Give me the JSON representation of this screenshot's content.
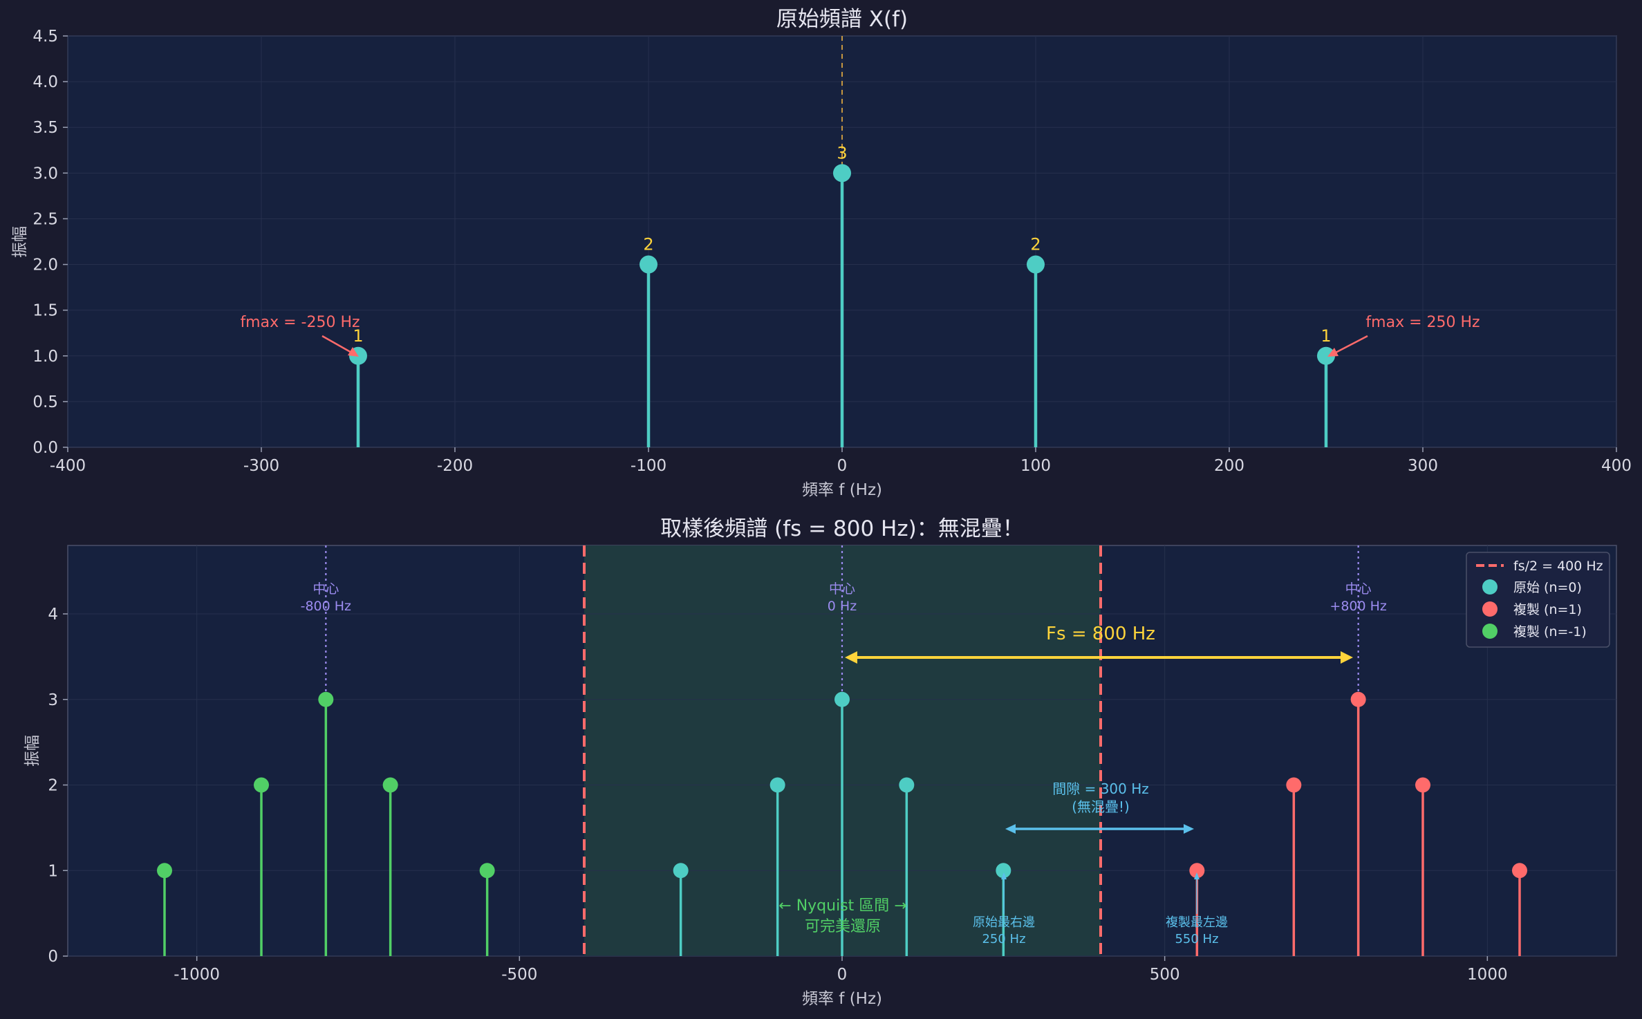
{
  "colors": {
    "background": "#1a1b2e",
    "plot_bg": "#16213e",
    "original": "#4ecdc4",
    "replica_pos": "#ff6b6b",
    "replica_neg": "#51cf66",
    "value_label": "#ffd43b",
    "center_line": "#9c8cf0",
    "nyquist_line": "#ff6b6b",
    "nyquist_fill": "#1f3a3f",
    "fs_arrow": "#ffd43b",
    "gap_arrow": "#5bc0eb",
    "text": "#e6e6f0"
  },
  "chart_data": [
    {
      "type": "stem",
      "title": "原始頻譜 X(f)",
      "xlabel": "頻率 f (Hz)",
      "ylabel": "振幅",
      "xlim": [
        -400,
        400
      ],
      "ylim": [
        0,
        4.5
      ],
      "xticks": [
        "-400",
        "-300",
        "-200",
        "-100",
        "0",
        "100",
        "200",
        "300",
        "400"
      ],
      "yticks": [
        "0.0",
        "0.5",
        "1.0",
        "1.5",
        "2.0",
        "2.5",
        "3.0",
        "3.5",
        "4.0",
        "4.5"
      ],
      "grid": true,
      "series": [
        {
          "x": [
            -250,
            -100,
            0,
            100,
            250
          ],
          "y": [
            1,
            2,
            3,
            2,
            1
          ],
          "labels": [
            "1",
            "2",
            "3",
            "2",
            "1"
          ]
        }
      ],
      "center_line_x": 0,
      "annotations": [
        {
          "text": "fmax = -250 Hz",
          "x": -250,
          "y": 1
        },
        {
          "text": "fmax = 250 Hz",
          "x": 250,
          "y": 1
        }
      ]
    },
    {
      "type": "stem",
      "title": "取樣後頻譜 (fs = 800 Hz)：無混疊！",
      "xlabel": "頻率 f (Hz)",
      "ylabel": "振幅",
      "xlim": [
        -1200,
        1200
      ],
      "ylim": [
        0,
        4.8
      ],
      "xticks": [
        "-1000",
        "-500",
        "0",
        "500",
        "1000"
      ],
      "yticks": [
        "0",
        "1",
        "2",
        "3",
        "4"
      ],
      "grid": true,
      "legend": "top-right",
      "nyquist": {
        "fs_half": 400,
        "label": "fs/2 = 400 Hz"
      },
      "series": [
        {
          "name": "原始 (n=0)",
          "color_key": "original",
          "x": [
            -250,
            -100,
            0,
            100,
            250
          ],
          "y": [
            1,
            2,
            3,
            2,
            1
          ]
        },
        {
          "name": "複製 (n=1)",
          "color_key": "replica_pos",
          "x": [
            550,
            700,
            800,
            900,
            1050
          ],
          "y": [
            1,
            2,
            3,
            2,
            1
          ]
        },
        {
          "name": "複製 (n=-1)",
          "color_key": "replica_neg",
          "x": [
            -1050,
            -900,
            -800,
            -700,
            -550
          ],
          "y": [
            1,
            2,
            3,
            2,
            1
          ]
        }
      ],
      "centers": [
        {
          "x": -800,
          "label1": "中心",
          "label2": "-800 Hz"
        },
        {
          "x": 0,
          "label1": "中心",
          "label2": "0 Hz"
        },
        {
          "x": 800,
          "label1": "中心",
          "label2": "+800 Hz"
        }
      ],
      "fs_arrow": {
        "from": 0,
        "to": 800,
        "y": 3.5,
        "label": "Fs = 800 Hz"
      },
      "gap_arrow": {
        "from": 250,
        "to": 550,
        "y": 1.5,
        "label1": "間隙 = 300 Hz",
        "label2": "(無混疊!)"
      },
      "nyquist_text": {
        "line1": "← Nyquist 區間 →",
        "line2": "可完美還原"
      },
      "edge_labels": [
        {
          "x": 250,
          "line1": "原始最右邊",
          "line2": "250 Hz"
        },
        {
          "x": 550,
          "line1": "複製最左邊",
          "line2": "550 Hz"
        }
      ]
    }
  ]
}
